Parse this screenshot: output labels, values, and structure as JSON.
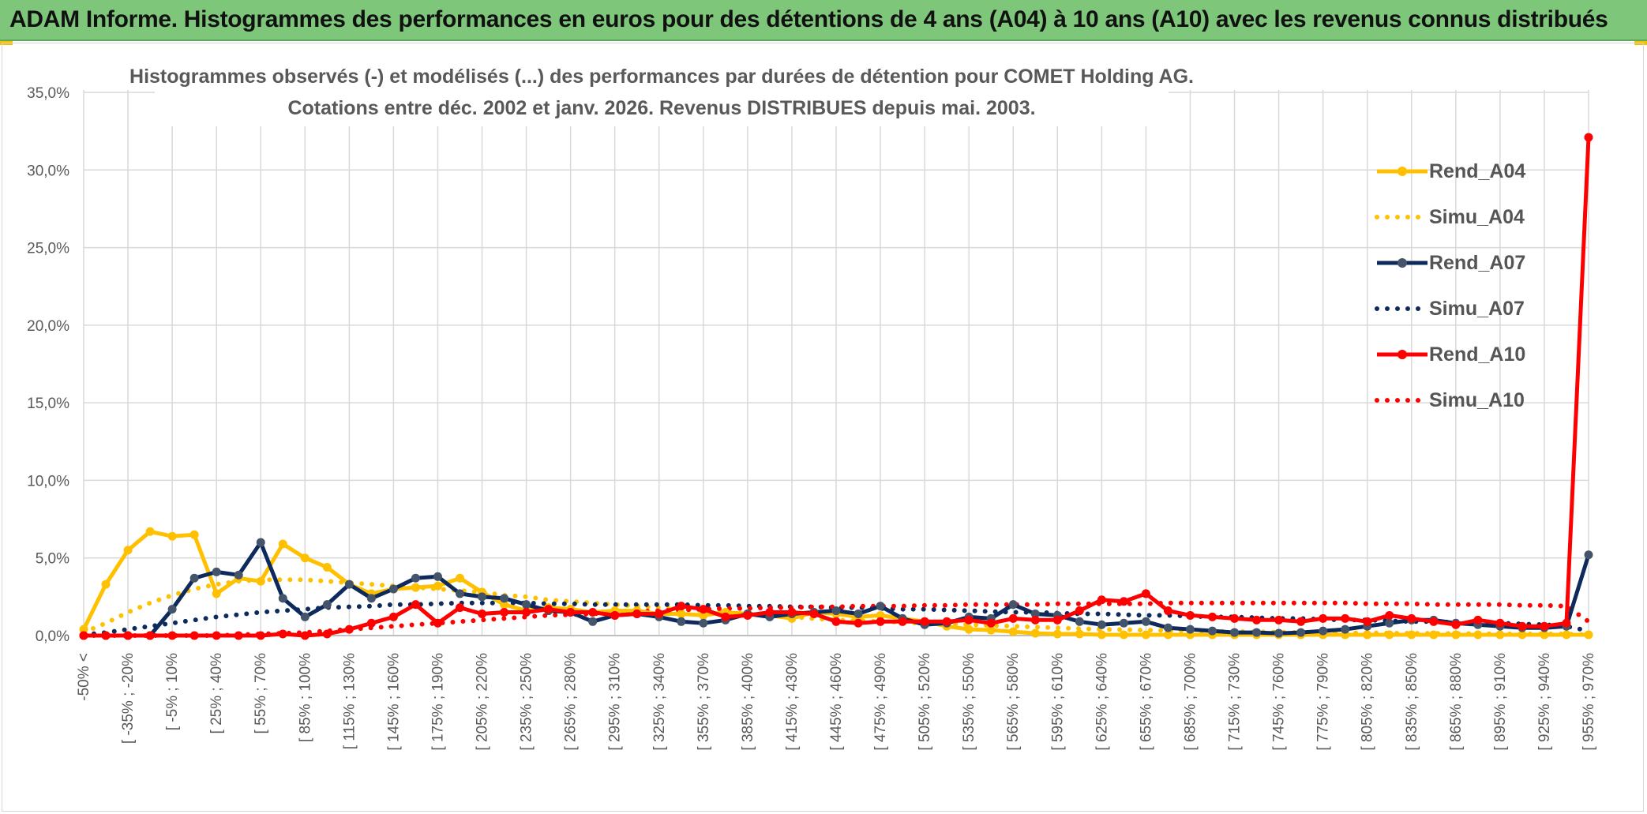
{
  "header": {
    "title": "ADAM Informe. Histogrammes des performances en euros pour des détentions de 4 ans (A04) à 10 ans (A10) avec les revenus connus distribués"
  },
  "chart_data": {
    "type": "line",
    "title_line1": "Histogrammes observés (-) et modélisés (...) des performances par durées de détention pour COMET Holding AG.",
    "title_line2": "Cotations entre déc. 2002 et janv. 2026. Revenus DISTRIBUES depuis mai. 2003.",
    "xlabel": "",
    "ylabel": "",
    "ylim": [
      0,
      35
    ],
    "yticks": [
      "0,0%",
      "5,0%",
      "10,0%",
      "15,0%",
      "20,0%",
      "25,0%",
      "30,0%",
      "35,0%"
    ],
    "x_tick_labels": [
      "-50% <",
      "[ -35% ; -20%",
      "[ -5% ; 10%",
      "[ 25% ; 40%",
      "[ 55% ; 70%",
      "[ 85% ; 100%",
      "[ 115% ; 130%",
      "[ 145% ; 160%",
      "[ 175% ; 190%",
      "[ 205% ; 220%",
      "[ 235% ; 250%",
      "[ 265% ; 280%",
      "[ 295% ; 310%",
      "[ 325% ; 340%",
      "[ 355% ; 370%",
      "[ 385% ; 400%",
      "[ 415% ; 430%",
      "[ 445% ; 460%",
      "[ 475% ; 490%",
      "[ 505% ; 520%",
      "[ 535% ; 550%",
      "[ 565% ; 580%",
      "[ 595% ; 610%",
      "[ 625% ; 640%",
      "[ 655% ; 670%",
      "[ 685% ; 700%",
      "[ 715% ; 730%",
      "[ 745% ; 760%",
      "[ 775% ; 790%",
      "[ 805% ; 820%",
      "[ 835% ; 850%",
      "[ 865% ; 880%",
      "[ 895% ; 910%",
      "[ 925% ; 940%",
      "[ 955% ; 970%"
    ],
    "n_points": 69,
    "legend_position": "right",
    "series": [
      {
        "name": "Rend_A04",
        "style": "solid",
        "color": "#ffc000",
        "values": [
          0.4,
          3.3,
          5.5,
          6.7,
          6.4,
          6.5,
          2.7,
          3.7,
          3.5,
          5.9,
          5.0,
          4.4,
          3.3,
          2.7,
          3.0,
          3.1,
          3.2,
          3.7,
          2.8,
          2.0,
          1.6,
          1.8,
          1.7,
          1.5,
          1.6,
          1.6,
          1.4,
          1.4,
          1.3,
          1.5,
          1.4,
          1.3,
          1.1,
          1.5,
          1.4,
          1.2,
          1.3,
          1.1,
          0.9,
          0.6,
          0.4,
          0.35,
          0.25,
          0.15,
          0.1,
          0.1,
          0.05,
          0.05,
          0.05,
          0.05,
          0.05,
          0.05,
          0.05,
          0.05,
          0.05,
          0.05,
          0.05,
          0.05,
          0.05,
          0.05,
          0.05,
          0.05,
          0.05,
          0.05,
          0.05,
          0.05,
          0.05,
          0.05,
          0.05
        ]
      },
      {
        "name": "Simu_A04",
        "style": "dotted",
        "color": "#ffc000",
        "values": [
          0.2,
          0.8,
          1.5,
          2.1,
          2.6,
          3.0,
          3.3,
          3.5,
          3.6,
          3.6,
          3.6,
          3.5,
          3.4,
          3.3,
          3.2,
          3.1,
          3.0,
          2.9,
          2.8,
          2.6,
          2.5,
          2.3,
          2.2,
          2.1,
          2.0,
          1.9,
          1.8,
          1.7,
          1.6,
          1.5,
          1.4,
          1.3,
          1.2,
          1.1,
          1.0,
          0.95,
          0.9,
          0.85,
          0.8,
          0.75,
          0.7,
          0.65,
          0.6,
          0.55,
          0.5,
          0.45,
          0.4,
          0.38,
          0.35,
          0.33,
          0.3,
          0.28,
          0.26,
          0.24,
          0.22,
          0.2,
          0.19,
          0.18,
          0.17,
          0.16,
          0.15,
          0.14,
          0.13,
          0.12,
          0.11,
          0.1,
          0.1,
          0.1,
          0.05
        ]
      },
      {
        "name": "Rend_A07",
        "style": "solid",
        "color": "#0e2a5c",
        "values": [
          0.0,
          0.0,
          0.0,
          0.0,
          1.7,
          3.7,
          4.1,
          3.9,
          6.0,
          2.4,
          1.2,
          2.0,
          3.3,
          2.4,
          3.0,
          3.7,
          3.8,
          2.7,
          2.5,
          2.4,
          2.0,
          1.6,
          1.5,
          0.9,
          1.3,
          1.4,
          1.2,
          0.9,
          0.8,
          1.0,
          1.4,
          1.2,
          1.4,
          1.5,
          1.6,
          1.4,
          1.9,
          1.1,
          0.7,
          0.8,
          1.2,
          1.1,
          2.0,
          1.4,
          1.3,
          0.9,
          0.7,
          0.8,
          0.9,
          0.5,
          0.4,
          0.3,
          0.2,
          0.2,
          0.15,
          0.2,
          0.3,
          0.4,
          0.6,
          0.8,
          1.0,
          1.0,
          0.8,
          0.7,
          0.6,
          0.5,
          0.5,
          0.6,
          5.2
        ]
      },
      {
        "name": "Simu_A07",
        "style": "dotted",
        "color": "#0e2a5c",
        "values": [
          0.05,
          0.2,
          0.4,
          0.6,
          0.8,
          1.0,
          1.2,
          1.35,
          1.5,
          1.6,
          1.7,
          1.8,
          1.85,
          1.9,
          2.0,
          2.0,
          2.05,
          2.1,
          2.1,
          2.1,
          2.1,
          2.05,
          2.05,
          2.0,
          2.0,
          2.0,
          2.0,
          2.0,
          1.95,
          1.95,
          1.9,
          1.9,
          1.85,
          1.85,
          1.8,
          1.8,
          1.75,
          1.7,
          1.7,
          1.65,
          1.6,
          1.55,
          1.5,
          1.5,
          1.45,
          1.4,
          1.4,
          1.35,
          1.3,
          1.3,
          1.25,
          1.2,
          1.2,
          1.15,
          1.1,
          1.1,
          1.05,
          1.0,
          1.0,
          0.95,
          0.9,
          0.9,
          0.85,
          0.8,
          0.8,
          0.75,
          0.7,
          0.6,
          0.3
        ]
      },
      {
        "name": "Rend_A10",
        "style": "solid",
        "color": "#ff0000",
        "values": [
          0.0,
          0.0,
          0.0,
          0.0,
          0.0,
          0.0,
          0.0,
          0.0,
          0.0,
          0.1,
          0.0,
          0.1,
          0.4,
          0.8,
          1.2,
          2.0,
          0.8,
          1.8,
          1.4,
          1.5,
          1.5,
          1.7,
          1.5,
          1.5,
          1.3,
          1.4,
          1.4,
          1.9,
          1.7,
          1.2,
          1.3,
          1.5,
          1.5,
          1.4,
          0.9,
          0.8,
          0.9,
          0.9,
          0.9,
          0.9,
          1.0,
          0.8,
          1.1,
          1.0,
          1.0,
          1.6,
          2.3,
          2.2,
          2.7,
          1.6,
          1.3,
          1.2,
          1.1,
          1.0,
          1.0,
          0.9,
          1.1,
          1.1,
          0.9,
          1.3,
          1.1,
          0.9,
          0.7,
          1.0,
          0.8,
          0.6,
          0.6,
          0.8,
          32.1
        ]
      },
      {
        "name": "Simu_A10",
        "style": "dotted",
        "color": "#ff0000",
        "values": [
          0.0,
          0.0,
          0.0,
          0.0,
          0.0,
          0.0,
          0.0,
          0.05,
          0.1,
          0.15,
          0.2,
          0.3,
          0.4,
          0.5,
          0.6,
          0.7,
          0.8,
          0.9,
          1.0,
          1.1,
          1.2,
          1.3,
          1.35,
          1.4,
          1.5,
          1.55,
          1.6,
          1.65,
          1.7,
          1.75,
          1.75,
          1.8,
          1.8,
          1.85,
          1.85,
          1.9,
          1.9,
          1.9,
          1.95,
          1.95,
          2.0,
          2.0,
          2.0,
          2.0,
          2.05,
          2.05,
          2.05,
          2.05,
          2.05,
          2.1,
          2.1,
          2.1,
          2.1,
          2.1,
          2.1,
          2.1,
          2.1,
          2.1,
          2.05,
          2.05,
          2.05,
          2.0,
          2.0,
          2.0,
          2.0,
          1.95,
          1.95,
          1.9,
          0.9
        ]
      }
    ]
  }
}
